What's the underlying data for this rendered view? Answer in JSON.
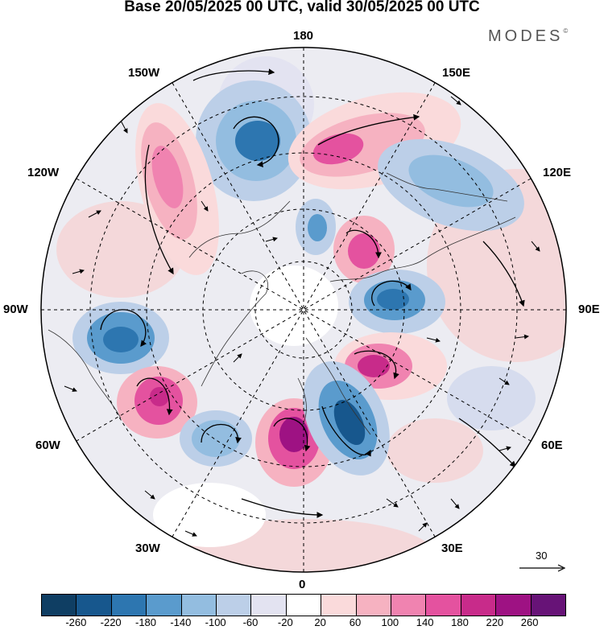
{
  "title": "Base 20/05/2025 00 UTC, valid 30/05/2025 00 UTC",
  "brand": "MODES",
  "brand_mark": "©",
  "map": {
    "projection": "north-polar-stereographic",
    "longitude_labels": {
      "top": "180",
      "bottom": "0",
      "left": "90W",
      "right": "90E",
      "upper_left": "150W",
      "upper_right": "150E",
      "mid_upper_left": "120W",
      "mid_upper_right": "120E",
      "mid_lower_left": "60W",
      "mid_lower_right": "60E",
      "lower_left": "30W",
      "lower_right": "30E"
    },
    "anomaly_centers": [
      {
        "name": "north-pacific-low",
        "sign": "negative",
        "color": "#3b80b9"
      },
      {
        "name": "alaska-high",
        "sign": "positive",
        "color": "#e55aa0"
      },
      {
        "name": "north-pacific-high",
        "sign": "positive",
        "color": "#e23f93"
      },
      {
        "name": "east-siberia-low",
        "sign": "negative",
        "color": "#5a96c9"
      },
      {
        "name": "hudson-bay-low",
        "sign": "negative",
        "color": "#2e6fab"
      },
      {
        "name": "greenland-high",
        "sign": "positive",
        "color": "#e55aa0"
      },
      {
        "name": "north-atlantic-high",
        "sign": "positive",
        "color": "#b4177f"
      },
      {
        "name": "scandinavia-low",
        "sign": "negative",
        "color": "#1f5c94"
      },
      {
        "name": "kara-sea-high",
        "sign": "positive",
        "color": "#d83c8b"
      },
      {
        "name": "central-siberia-low",
        "sign": "negative",
        "color": "#3b80b9"
      },
      {
        "name": "laptev-high",
        "sign": "positive",
        "color": "#e23f93"
      }
    ]
  },
  "scale_vector": {
    "label": "30"
  },
  "colorbar": {
    "colors": [
      "#0f3e63",
      "#17578d",
      "#2d76b0",
      "#5a9bcd",
      "#93bde0",
      "#bccfe8",
      "#e3e3f1",
      "#ffffff",
      "#fadadb",
      "#f6b2c1",
      "#f083b0",
      "#e4529f",
      "#c82b8a",
      "#9e1283",
      "#671377"
    ],
    "tick_labels": [
      "-260",
      "-220",
      "-180",
      "-140",
      "-100",
      "-60",
      "-20",
      "20",
      "60",
      "100",
      "140",
      "180",
      "220",
      "260"
    ]
  }
}
